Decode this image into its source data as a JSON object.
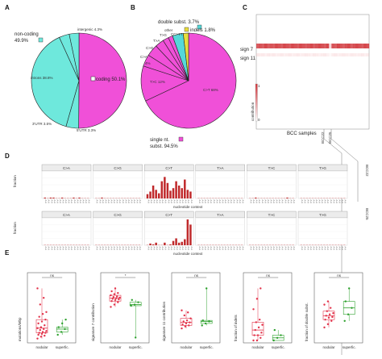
{
  "panels": {
    "a": "A",
    "b": "B",
    "c": "C",
    "d": "D",
    "e": "E"
  },
  "colors": {
    "coding": "#f050d8",
    "noncoding": "#6ee8dc",
    "pie_stroke": "#222222",
    "single": "#f050d8",
    "double": "#55d8d8",
    "indels": "#e8dc3c",
    "heat_dark": "#d0343a",
    "heat_light": "#f3b6b8",
    "bar": "#c0292b",
    "strip": "#ececec",
    "box": "#2ca02c",
    "point": "#e2334a"
  },
  "chart_data": [
    {
      "type": "pie",
      "panel": "A",
      "labels": [
        "coding",
        "non-coding",
        "intergenic",
        "introns",
        "3'UTR",
        "5'UTR"
      ],
      "slices": [
        {
          "label": "coding",
          "value": 50.1,
          "text": "coding 50.1%",
          "group": "coding"
        },
        {
          "label": "intergenic",
          "value": 4.3,
          "text": "intergenic 4.3%",
          "group": "non-coding"
        },
        {
          "label": "introns",
          "value": 38.8,
          "text": "introns 38.8%",
          "group": "non-coding"
        },
        {
          "label": "3'UTR",
          "value": 3.5,
          "text": "3'UTR 3.5%",
          "group": "non-coding"
        },
        {
          "label": "5'UTR",
          "value": 3.3,
          "text": "5'UTR 3.3%",
          "group": "non-coding"
        }
      ],
      "legend": [
        {
          "text": "non-coding",
          "subtext": "49.9%"
        },
        {
          "text": "coding 50.1%"
        }
      ]
    },
    {
      "type": "pie",
      "panel": "B",
      "slices": [
        {
          "label": "C>T",
          "value": 68,
          "text": "C>T 68%",
          "group": "single nt. subst."
        },
        {
          "label": "T>C",
          "value": 12,
          "text": "T>C 12%",
          "group": "single nt. subst."
        },
        {
          "label": "C>G",
          "value": 4,
          "text": "4%",
          "group": "single nt. subst."
        },
        {
          "label": "C>A",
          "value": 4,
          "text": "",
          "group": "single nt. subst."
        },
        {
          "label": "T>A",
          "value": 3,
          "text": "",
          "group": "single nt. subst."
        },
        {
          "label": "T>G",
          "value": 2,
          "text": "",
          "group": "single nt. subst."
        },
        {
          "label": "other",
          "value": 1.5,
          "text": "other",
          "group": "single nt. subst."
        },
        {
          "label": "CC>TT",
          "value": 3.7,
          "text": "CC>TT",
          "group": "double subst."
        },
        {
          "label": "indels",
          "value": 1.8,
          "text": "indels 1.8%",
          "group": "indels"
        }
      ],
      "labels_visible": [
        "C>A",
        "C>G",
        "4%",
        "T>A",
        "T>G",
        "other",
        "CC>TT",
        "T>C 12%",
        "C>T 68%"
      ],
      "legend": [
        {
          "text": "double subst. 3.7%"
        },
        {
          "text": "indels 1.8%"
        },
        {
          "text": "single nt.",
          "subtext": "subst. 94.5%"
        }
      ]
    },
    {
      "type": "heatmap",
      "panel": "C",
      "rows": [
        "sign 7",
        "sign 11"
      ],
      "xlabel": "BCC samples",
      "colorbar": {
        "label": "contribution",
        "ticks": [
          "1",
          "0"
        ]
      },
      "highlighted": [
        "BCC22",
        "BCC25"
      ],
      "values": [
        [
          0.8,
          0.85,
          0.8,
          0.9,
          0.8,
          0.85,
          0.8,
          0.9,
          0.85,
          0.8,
          0.9,
          0.85,
          0.8,
          0.9,
          0.85,
          0.8,
          0.9,
          0.85,
          0.8,
          0.85,
          0.9,
          0.8,
          0.85,
          0.9,
          0.85,
          0.8,
          0.9,
          0.2,
          0.85,
          0.8,
          0.9,
          0.85,
          0.8,
          0.85,
          0.9,
          0.8,
          0.85,
          0.9,
          0.85,
          0.8,
          0.9,
          0.85
        ],
        [
          0.3,
          0.25,
          0.3,
          0.2,
          0.3,
          0.25,
          0.3,
          0.2,
          0.25,
          0.3,
          0.2,
          0.25,
          0.3,
          0.2,
          0.25,
          0.3,
          0.2,
          0.25,
          0.3,
          0.25,
          0.2,
          0.3,
          0.25,
          0.2,
          0.25,
          0.3,
          0.2,
          0.1,
          0.25,
          0.3,
          0.2,
          0.25,
          0.3,
          0.25,
          0.2,
          0.3,
          0.25,
          0.2,
          0.25,
          0.3,
          0.2,
          0.25
        ]
      ]
    },
    {
      "type": "bar",
      "panel": "D",
      "categories": [
        "C>A",
        "C>G",
        "C>T",
        "T>A",
        "T>C",
        "T>G"
      ],
      "xlabel": "nucleotide context",
      "ylabel": "fraction",
      "context_label": "A-A",
      "series": [
        {
          "name": "BCC22",
          "values": [
            [
              0.01,
              0.0,
              0.01,
              0.01,
              0.0,
              0.0,
              0.01,
              0.0,
              0.0,
              0.0,
              0.01,
              0.0,
              0.01,
              0.0,
              0.0,
              0.0
            ],
            [
              0.0,
              0.0,
              0.01,
              0.0,
              0.0,
              0.0,
              0.0,
              0.0,
              0.0,
              0.0,
              0.0,
              0.0,
              0.0,
              0.0,
              0.0,
              0.0
            ],
            [
              0.05,
              0.08,
              0.15,
              0.1,
              0.06,
              0.2,
              0.25,
              0.18,
              0.09,
              0.12,
              0.2,
              0.15,
              0.12,
              0.22,
              0.1,
              0.08
            ],
            [
              0.0,
              0.0,
              0.0,
              0.0,
              0.0,
              0.0,
              0.0,
              0.0,
              0.0,
              0.0,
              0.0,
              0.0,
              0.0,
              0.0,
              0.0,
              0.0
            ],
            [
              0.0,
              0.0,
              0.01,
              0.0,
              0.0,
              0.0,
              0.0,
              0.0,
              0.0,
              0.0,
              0.0,
              0.0,
              0.0,
              0.01,
              0.0,
              0.0
            ],
            [
              0.0,
              0.0,
              0.0,
              0.0,
              0.0,
              0.0,
              0.0,
              0.0,
              0.0,
              0.0,
              0.0,
              0.0,
              0.0,
              0.0,
              0.0,
              0.0
            ]
          ]
        },
        {
          "name": "BCC25",
          "values": [
            [
              0.0,
              0.0,
              0.0,
              0.0,
              0.0,
              0.0,
              0.0,
              0.0,
              0.0,
              0.0,
              0.0,
              0.0,
              0.0,
              0.0,
              0.0,
              0.0
            ],
            [
              0.0,
              0.0,
              0.0,
              0.0,
              0.0,
              0.0,
              0.0,
              0.0,
              0.0,
              0.0,
              0.0,
              0.0,
              0.0,
              0.0,
              0.0,
              0.0
            ],
            [
              0.0,
              0.02,
              0.01,
              0.03,
              0.0,
              0.0,
              0.03,
              0.0,
              0.01,
              0.05,
              0.08,
              0.03,
              0.04,
              0.07,
              0.3,
              0.24
            ],
            [
              0.0,
              0.0,
              0.0,
              0.0,
              0.0,
              0.0,
              0.0,
              0.0,
              0.0,
              0.0,
              0.0,
              0.0,
              0.0,
              0.0,
              0.0,
              0.0
            ],
            [
              0.0,
              0.0,
              0.0,
              0.0,
              0.0,
              0.0,
              0.0,
              0.0,
              0.0,
              0.0,
              0.0,
              0.0,
              0.0,
              0.0,
              0.0,
              0.0
            ],
            [
              0.0,
              0.0,
              0.0,
              0.0,
              0.0,
              0.0,
              0.0,
              0.0,
              0.0,
              0.0,
              0.0,
              0.0,
              0.0,
              0.0,
              0.0,
              0.0
            ]
          ]
        }
      ]
    },
    {
      "type": "scatter",
      "panel": "E",
      "groups": [
        "nodular",
        "superfic."
      ],
      "subplots": [
        {
          "ylabel": "mutations/Mbp",
          "sig": "ns",
          "nodular": [
            2,
            4,
            5,
            6,
            7,
            8,
            8,
            9,
            10,
            11,
            12,
            13,
            14,
            16,
            18,
            20,
            22,
            25,
            28,
            30,
            38,
            45,
            55
          ],
          "superfic": [
            6,
            9,
            12,
            14,
            18,
            22
          ]
        },
        {
          "ylabel": "signature 7 contribution",
          "sig": "*",
          "nodular": [
            0.58,
            0.62,
            0.66,
            0.68,
            0.7,
            0.71,
            0.72,
            0.73,
            0.74,
            0.75,
            0.76,
            0.78,
            0.8,
            0.82,
            0.85,
            0.9
          ],
          "superfic": [
            0.6,
            0.62,
            0.66,
            0.7,
            0.05
          ]
        },
        {
          "ylabel": "signature 11 contribution",
          "sig": "ns",
          "nodular": [
            0.12,
            0.14,
            0.15,
            0.16,
            0.17,
            0.18,
            0.19,
            0.2,
            0.22,
            0.25,
            0.28,
            0.3
          ],
          "superfic": [
            0.15,
            0.17,
            0.19,
            0.2,
            0.52
          ]
        },
        {
          "ylabel": "fraction of indels",
          "sig": "ns",
          "nodular": [
            0.0,
            0.0,
            0.005,
            0.01,
            0.01,
            0.015,
            0.02,
            0.025,
            0.03,
            0.035,
            0.04,
            0.06,
            0.08,
            0.1
          ],
          "superfic": [
            0.0,
            0.005,
            0.01,
            0.02
          ]
        },
        {
          "ylabel": "fraction of double subst.",
          "sig": "ns",
          "nodular": [
            0.02,
            0.025,
            0.03,
            0.032,
            0.035,
            0.036,
            0.038,
            0.04,
            0.042,
            0.045,
            0.05,
            0.055,
            0.06
          ],
          "superfic": [
            0.03,
            0.04,
            0.05,
            0.06,
            0.08
          ]
        }
      ]
    }
  ]
}
